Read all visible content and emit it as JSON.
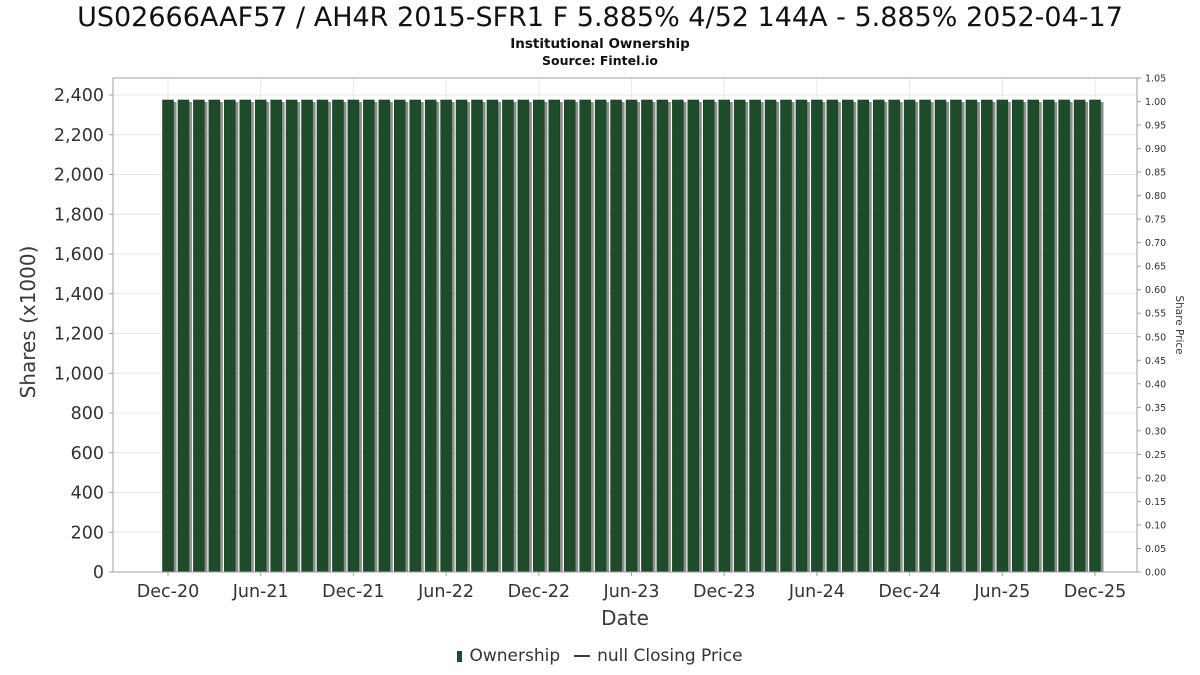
{
  "header": {
    "title": "US02666AAF57 / AH4R 2015-SFR1 F 5.885% 4/52 144A - 5.885% 2052-04-17",
    "subtitle": "Institutional Ownership",
    "source": "Source: Fintel.io"
  },
  "axes": {
    "xlabel": "Date",
    "ylabel_left": "Shares (x1000)",
    "ylabel_right": "Share Price"
  },
  "legend": {
    "items": [
      {
        "label": "Ownership",
        "marker": "square",
        "color": "#1e4b2a"
      },
      {
        "label": "null Closing Price",
        "marker": "line",
        "color": "#3a3a3a"
      }
    ]
  },
  "colors": {
    "bar": "#1e4b2a",
    "bar_shadow": "#8e8e8e",
    "grid": "#e8e8e8",
    "axis": "#a0a0a0",
    "tick_text": "#333333"
  },
  "chart_data": {
    "type": "bar",
    "title": "US02666AAF57 / AH4R 2015-SFR1 F 5.885% 4/52 144A - 5.885% 2052-04-17",
    "subtitle": "Institutional Ownership",
    "source": "Source: Fintel.io",
    "xlabel": "Date",
    "ylabel_left": "Shares (x1000)",
    "ylabel_right": "Share Price",
    "legend_position": "bottom",
    "grid": true,
    "x": [
      "Dec-20",
      "Jan-21",
      "Feb-21",
      "Mar-21",
      "Apr-21",
      "May-21",
      "Jun-21",
      "Jul-21",
      "Aug-21",
      "Sep-21",
      "Oct-21",
      "Nov-21",
      "Dec-21",
      "Jan-22",
      "Feb-22",
      "Mar-22",
      "Apr-22",
      "May-22",
      "Jun-22",
      "Jul-22",
      "Aug-22",
      "Sep-22",
      "Oct-22",
      "Nov-22",
      "Dec-22",
      "Jan-23",
      "Feb-23",
      "Mar-23",
      "Apr-23",
      "May-23",
      "Jun-23",
      "Jul-23",
      "Aug-23",
      "Sep-23",
      "Oct-23",
      "Nov-23",
      "Dec-23",
      "Jan-24",
      "Feb-24",
      "Mar-24",
      "Apr-24",
      "May-24",
      "Jun-24",
      "Jul-24",
      "Aug-24",
      "Sep-24",
      "Oct-24",
      "Nov-24",
      "Dec-24",
      "Jan-25",
      "Feb-25",
      "Mar-25",
      "Apr-25",
      "May-25",
      "Jun-25",
      "Jul-25",
      "Aug-25",
      "Sep-25",
      "Oct-25",
      "Nov-25",
      "Dec-25"
    ],
    "series": [
      {
        "name": "Ownership",
        "values": [
          2375,
          2375,
          2375,
          2375,
          2375,
          2375,
          2375,
          2375,
          2375,
          2375,
          2375,
          2375,
          2375,
          2375,
          2375,
          2375,
          2375,
          2375,
          2375,
          2375,
          2375,
          2375,
          2375,
          2375,
          2375,
          2375,
          2375,
          2375,
          2375,
          2375,
          2375,
          2375,
          2375,
          2375,
          2375,
          2375,
          2375,
          2375,
          2375,
          2375,
          2375,
          2375,
          2375,
          2375,
          2375,
          2375,
          2375,
          2375,
          2375,
          2375,
          2375,
          2375,
          2375,
          2375,
          2375,
          2375,
          2375,
          2375,
          2375,
          2375,
          2375
        ]
      },
      {
        "name": "null Closing Price",
        "values": []
      }
    ],
    "x_tick_labels": [
      "Dec-20",
      "Jun-21",
      "Dec-21",
      "Jun-22",
      "Dec-22",
      "Jun-23",
      "Dec-23",
      "Jun-24",
      "Dec-24",
      "Jun-25",
      "Dec-25"
    ],
    "y_left_ticks": [
      0,
      200,
      400,
      600,
      800,
      1000,
      1200,
      1400,
      1600,
      1800,
      2000,
      2200,
      2400
    ],
    "y_right_ticks": [
      0,
      0.05,
      0.1,
      0.15,
      0.2,
      0.25,
      0.3,
      0.35,
      0.4,
      0.45,
      0.5,
      0.55,
      0.6,
      0.65,
      0.7,
      0.75,
      0.8,
      0.85,
      0.9,
      0.95,
      1,
      1.05
    ],
    "ylim_left": [
      0,
      2486
    ],
    "ylim_right": [
      0,
      1.05
    ]
  }
}
